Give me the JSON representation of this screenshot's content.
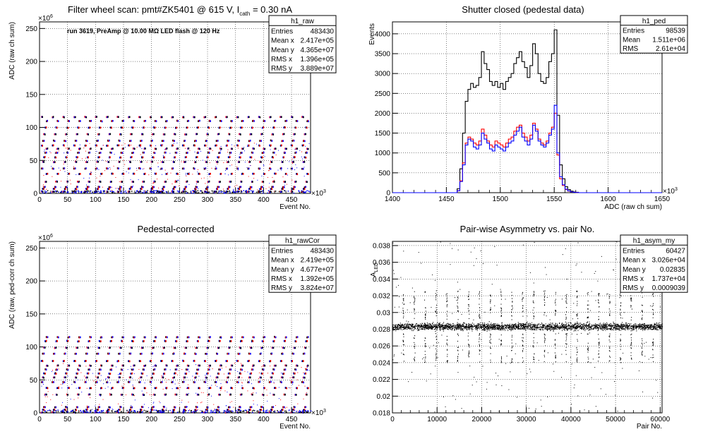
{
  "chart_data": [
    {
      "id": "raw",
      "type": "scatter",
      "title_parts": {
        "a": "Filter wheel scan: pmt#ZK5401 @   615 V, I",
        "sub": "cath",
        "b": " = 0.30 nA"
      },
      "annotation": "run 3619, PreAmp @ 10.00 MΩ LED flash @  120 Hz",
      "xlabel": "Event No.",
      "ylabel": "ADC (raw ch sum)",
      "x_multiplier": "×10",
      "x_multiplier_exp": "3",
      "y_multiplier": "×10",
      "y_multiplier_exp": "6",
      "xlim": [
        0,
        484
      ],
      "ylim": [
        0,
        260
      ],
      "xticks": [
        "0",
        "50",
        "100",
        "150",
        "200",
        "250",
        "300",
        "350",
        "400",
        "450"
      ],
      "xtick_values": [
        0,
        50,
        100,
        150,
        200,
        250,
        300,
        350,
        400,
        450
      ],
      "yticks": [
        "0",
        "50",
        "100",
        "150",
        "200",
        "250"
      ],
      "ytick_values": [
        0,
        50,
        100,
        150,
        200,
        250
      ],
      "grid": true,
      "stats": {
        "name": "h1_raw",
        "rows": [
          [
            "Entries",
            "483430"
          ],
          [
            "Mean x",
            "2.417e+05"
          ],
          [
            "Mean y",
            "4.365e+07"
          ],
          [
            "RMS x",
            "1.396e+05"
          ],
          [
            "RMS y",
            "3.889e+07"
          ]
        ]
      },
      "levels": [
        3,
        7,
        10,
        18,
        30,
        38,
        48,
        55,
        62,
        68,
        73,
        80,
        90,
        100,
        110,
        116
      ],
      "period": 19.4,
      "colors": {
        "red": "#ff0000",
        "blue": "#0000ff",
        "black": "#000000"
      }
    },
    {
      "id": "ped",
      "type": "histogram",
      "title": "Shutter closed (pedestal data)",
      "xlabel": "ADC (raw ch sum)",
      "ylabel": "Events",
      "x_multiplier": "×10",
      "x_multiplier_exp": "3",
      "xlim": [
        1400,
        1650
      ],
      "ylim": [
        0,
        4300
      ],
      "xticks": [
        "1400",
        "1450",
        "1500",
        "1550",
        "1600",
        "1650"
      ],
      "xtick_values": [
        1400,
        1450,
        1500,
        1550,
        1600,
        1650
      ],
      "yticks": [
        "0",
        "500",
        "1000",
        "1500",
        "2000",
        "2500",
        "3000",
        "3500",
        "4000"
      ],
      "ytick_values": [
        0,
        500,
        1000,
        1500,
        2000,
        2500,
        3000,
        3500,
        4000
      ],
      "grid": true,
      "stats": {
        "name": "h1_ped",
        "rows": [
          [
            "Entries",
            "98539"
          ],
          [
            "Mean",
            "1.511e+06"
          ],
          [
            "RMS",
            "2.61e+04"
          ]
        ]
      },
      "bin_start": 1460,
      "bin_width": 2.5,
      "series": [
        {
          "color": "#000000",
          "values": [
            100,
            600,
            1500,
            2300,
            2600,
            2750,
            2650,
            2700,
            2900,
            3550,
            3250,
            3100,
            2800,
            2700,
            2800,
            2650,
            2750,
            2600,
            2800,
            2900,
            3000,
            3250,
            3400,
            3550,
            3300,
            3150,
            2900,
            3200,
            3750,
            3500,
            3000,
            2800,
            2750,
            2900,
            3300,
            3500,
            4100,
            1950,
            700,
            350,
            150,
            80,
            40,
            20,
            10
          ]
        },
        {
          "color": "#ff0000",
          "values": [
            50,
            300,
            750,
            1250,
            1400,
            1350,
            1250,
            1200,
            1300,
            1600,
            1450,
            1300,
            1200,
            1150,
            1300,
            1250,
            1200,
            1150,
            1250,
            1350,
            1400,
            1550,
            1650,
            1700,
            1500,
            1400,
            1300,
            1450,
            1750,
            1600,
            1350,
            1250,
            1200,
            1300,
            1500,
            1650,
            2000,
            950,
            350,
            180,
            80,
            40,
            20,
            10,
            5
          ]
        },
        {
          "color": "#0000ff",
          "values": [
            50,
            280,
            700,
            1200,
            1350,
            1300,
            1150,
            1100,
            1200,
            1500,
            1350,
            1250,
            1100,
            1050,
            1200,
            1150,
            1100,
            1050,
            1150,
            1250,
            1300,
            1450,
            1550,
            1650,
            1400,
            1300,
            1200,
            1350,
            1700,
            1550,
            1300,
            1200,
            1150,
            1250,
            1450,
            1600,
            2200,
            1000,
            400,
            200,
            90,
            45,
            20,
            10,
            5
          ]
        }
      ]
    },
    {
      "id": "rawcor",
      "type": "scatter",
      "title": "Pedestal-corrected",
      "xlabel": "Event No.",
      "ylabel": "ADC (raw, ped-corr ch sum)",
      "x_multiplier": "×10",
      "x_multiplier_exp": "3",
      "y_multiplier": "×10",
      "y_multiplier_exp": "6",
      "xlim": [
        0,
        484
      ],
      "ylim": [
        0,
        260
      ],
      "xticks": [
        "0",
        "50",
        "100",
        "150",
        "200",
        "250",
        "300",
        "350",
        "400",
        "450"
      ],
      "xtick_values": [
        0,
        50,
        100,
        150,
        200,
        250,
        300,
        350,
        400,
        450
      ],
      "yticks": [
        "0",
        "50",
        "100",
        "150",
        "200",
        "250"
      ],
      "ytick_values": [
        0,
        50,
        100,
        150,
        200,
        250
      ],
      "grid": true,
      "stats": {
        "name": "h1_rawCor",
        "rows": [
          [
            "Entries",
            "483430"
          ],
          [
            "Mean x",
            "2.419e+05"
          ],
          [
            "Mean y",
            "4.677e+07"
          ],
          [
            "RMS x",
            "1.392e+05"
          ],
          [
            "RMS y",
            "3.824e+07"
          ]
        ]
      },
      "levels": [
        1,
        5,
        9,
        28,
        38,
        47,
        54,
        60,
        66,
        72,
        79,
        90,
        99,
        109,
        115
      ],
      "period": 19.4,
      "colors": {
        "red": "#ff0000",
        "blue": "#0000ff",
        "black": "#000000"
      }
    },
    {
      "id": "asym",
      "type": "scatter",
      "title": "Pair-wise Asymmetry vs. pair No.",
      "xlabel": "Pair No.",
      "ylabel": "A",
      "ylabel_sub": "LED",
      "xlim": [
        0,
        60427
      ],
      "ylim": [
        0.018,
        0.0385
      ],
      "xticks": [
        "0",
        "10000",
        "20000",
        "30000",
        "40000",
        "50000",
        "60000"
      ],
      "xtick_values": [
        0,
        10000,
        20000,
        30000,
        40000,
        50000,
        60000
      ],
      "yticks": [
        "0.018",
        "0.02",
        "0.022",
        "0.024",
        "0.026",
        "0.028",
        "0.03",
        "0.032",
        "0.034",
        "0.036",
        "0.038"
      ],
      "ytick_values": [
        0.018,
        0.02,
        0.022,
        0.024,
        0.026,
        0.028,
        0.03,
        0.032,
        0.034,
        0.036,
        0.038
      ],
      "grid": true,
      "stats": {
        "name": "h1_asym_my",
        "rows": [
          [
            "Entries",
            "60427"
          ],
          [
            "Mean x",
            "3.026e+04"
          ],
          [
            "Mean y",
            "0.02835"
          ],
          [
            "RMS x",
            "1.737e+04"
          ],
          [
            "RMS y",
            "0.0009039"
          ]
        ]
      },
      "band_center": 0.02835,
      "band_halfwidth": 0.0007,
      "spike_period": 2430,
      "color": "#000000"
    }
  ]
}
